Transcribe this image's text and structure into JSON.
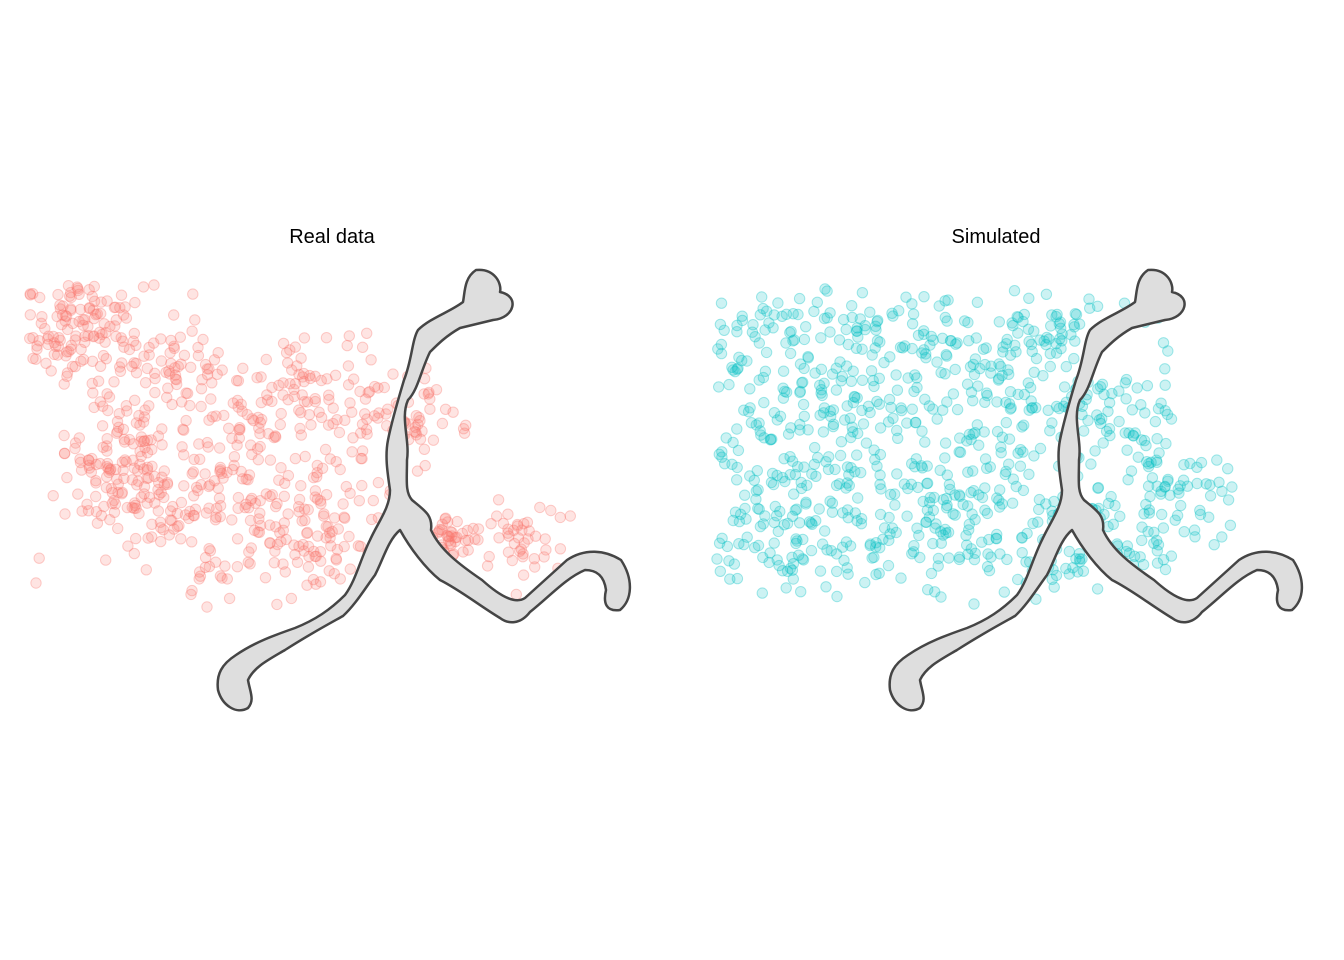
{
  "colors": {
    "real": "#F8766D",
    "simulated": "#00BFC4",
    "river_fill": "#DEDEDE",
    "river_stroke": "#454545"
  },
  "chart_data": [
    {
      "type": "scatter",
      "title": "Real data",
      "series_color": "#F8766D",
      "point_alpha": 0.2,
      "axes": "none",
      "grid": false,
      "overlay": "river network polygon (grey) with two forks",
      "n_points_approx": 900,
      "points": []
    },
    {
      "type": "scatter",
      "title": "Simulated",
      "series_color": "#00BFC4",
      "point_alpha": 0.2,
      "axes": "none",
      "grid": false,
      "overlay": "river network polygon (grey) with two forks",
      "n_points_approx": 900,
      "points": []
    }
  ]
}
